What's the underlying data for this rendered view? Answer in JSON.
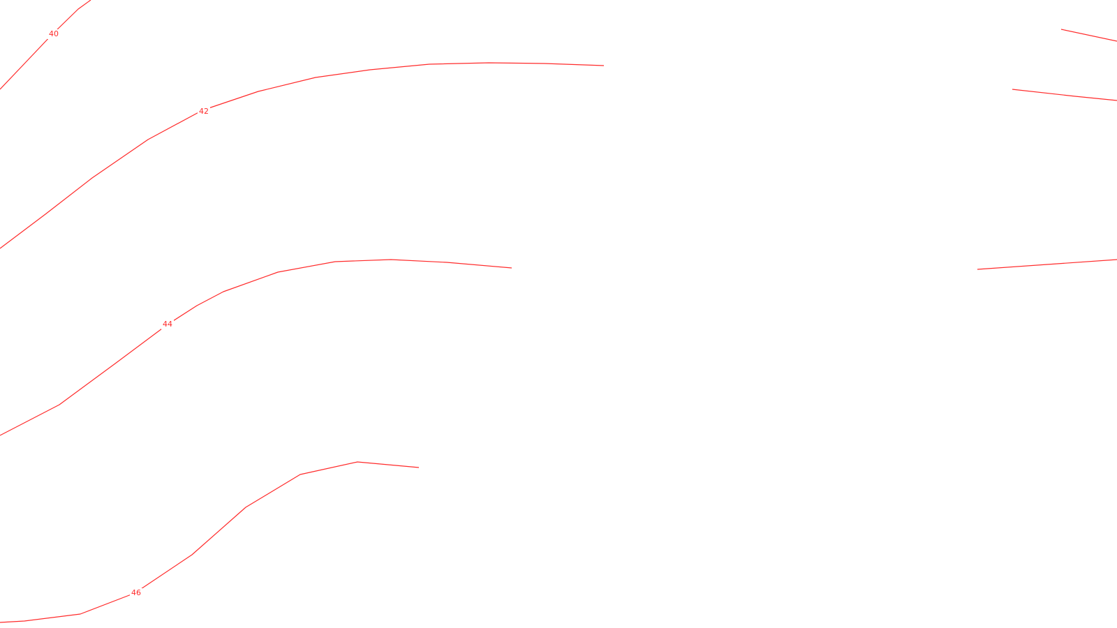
{
  "map": {
    "background_color": "#ffffff",
    "contour_color": "#ff2a2a",
    "contours": [
      {
        "id": "c40",
        "level": "40",
        "label": "40"
      },
      {
        "id": "c42",
        "level": "42",
        "label": "42"
      },
      {
        "id": "c44",
        "level": "44",
        "label": "44"
      },
      {
        "id": "c46",
        "level": "46",
        "label": "46"
      },
      {
        "id": "r1",
        "level": "",
        "label": ""
      },
      {
        "id": "r2",
        "level": "",
        "label": ""
      },
      {
        "id": "r3",
        "level": "",
        "label": ""
      }
    ]
  }
}
